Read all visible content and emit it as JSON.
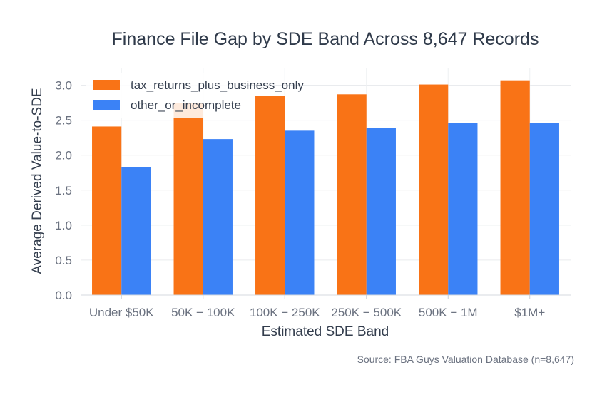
{
  "chart_data": {
    "type": "bar",
    "title": "Finance File Gap by SDE Band Across 8,647 Records",
    "xlabel": "Estimated SDE Band",
    "ylabel": "Average Derived Value-to-SDE",
    "categories": [
      "Under $50K",
      "$50K–$100K",
      "$100K–$250K",
      "$250K–$500K",
      "$500K–$1M",
      "$1M+"
    ],
    "tick_labels": [
      "Under $50K",
      "50K − 100K",
      "100K − 250K",
      "250K − 500K",
      "500K − 1M",
      "$1M+"
    ],
    "series": [
      {
        "name": "tax_returns_plus_business_only",
        "color": "#f97316",
        "values": [
          2.41,
          2.75,
          2.85,
          2.87,
          3.01,
          3.07
        ]
      },
      {
        "name": "other_or_incomplete",
        "color": "#3b82f6",
        "values": [
          1.83,
          2.23,
          2.35,
          2.39,
          2.46,
          2.46
        ]
      }
    ],
    "ylim": [
      0,
      3.25
    ],
    "yticks": [
      "0.0",
      "0.5",
      "1.0",
      "1.5",
      "2.0",
      "2.5",
      "3.0"
    ],
    "grid": true,
    "legend_position": "top-left",
    "source": "Source: FBA Guys Valuation Database (n=8,647)"
  }
}
